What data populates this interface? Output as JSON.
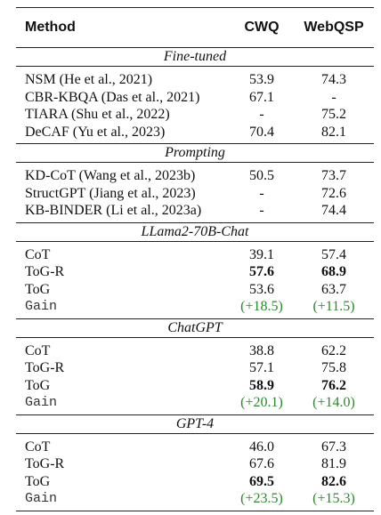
{
  "header": [
    "Method",
    "CWQ",
    "WebQSP"
  ],
  "sections": [
    {
      "title": "Fine-tuned",
      "rows": [
        {
          "cells": [
            "NSM (He et al., 2021)",
            "53.9",
            "74.3"
          ]
        },
        {
          "cells": [
            "CBR-KBQA (Das et al., 2021)",
            "67.1",
            "-"
          ]
        },
        {
          "cells": [
            "TIARA (Shu et al., 2022)",
            "-",
            "75.2"
          ]
        },
        {
          "cells": [
            "DeCAF (Yu et al., 2023)",
            "70.4",
            "82.1"
          ]
        }
      ]
    },
    {
      "title": "Prompting",
      "rows": [
        {
          "cells": [
            "KD-CoT (Wang et al., 2023b)",
            "50.5",
            "73.7"
          ]
        },
        {
          "cells": [
            "StructGPT (Jiang et al., 2023)",
            "-",
            "72.6"
          ]
        },
        {
          "cells": [
            "KB-BINDER (Li et al., 2023a)",
            "-",
            "74.4"
          ]
        }
      ]
    },
    {
      "title": "LLama2-70B-Chat",
      "rows": [
        {
          "cells": [
            "CoT",
            "39.1",
            "57.4"
          ]
        },
        {
          "cells": [
            "ToG-R",
            "57.6",
            "68.9"
          ],
          "bold": true
        },
        {
          "cells": [
            "ToG",
            "53.6",
            "63.7"
          ]
        },
        {
          "cells": [
            "Gain",
            "(+18.5)",
            "(+11.5)"
          ],
          "gain": true
        }
      ]
    },
    {
      "title": "ChatGPT",
      "rows": [
        {
          "cells": [
            "CoT",
            "38.8",
            "62.2"
          ]
        },
        {
          "cells": [
            "ToG-R",
            "57.1",
            "75.8"
          ]
        },
        {
          "cells": [
            "ToG",
            "58.9",
            "76.2"
          ],
          "bold": true
        },
        {
          "cells": [
            "Gain",
            "(+20.1)",
            "(+14.0)"
          ],
          "gain": true
        }
      ]
    },
    {
      "title": "GPT-4",
      "rows": [
        {
          "cells": [
            "CoT",
            "46.0",
            "67.3"
          ]
        },
        {
          "cells": [
            "ToG-R",
            "67.6",
            "81.9"
          ]
        },
        {
          "cells": [
            "ToG",
            "69.5",
            "82.6"
          ],
          "bold": true
        },
        {
          "cells": [
            "Gain",
            "(+23.5)",
            "(+15.3)"
          ],
          "gain": true
        }
      ]
    }
  ]
}
